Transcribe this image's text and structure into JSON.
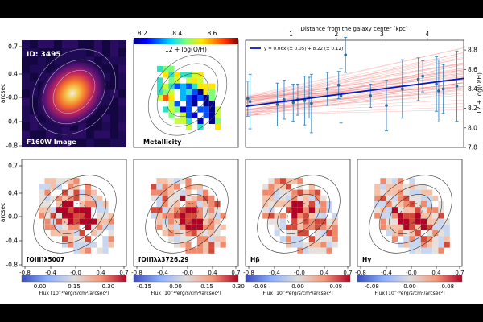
{
  "figure": {
    "id_label": "ID: 3495",
    "arcsec_label": "arcsec",
    "panel_titles": {
      "f160w": "F160W Image",
      "metallicity": "Metallicity",
      "oiii": "[OIII]λ5007",
      "oii": "[OII]λλ3726,29",
      "hbeta": "Hβ",
      "hgamma": "Hγ"
    },
    "y_ticks_top_left": [
      "0.7",
      "0.4",
      "-0.0",
      "-0.4",
      "-0.8"
    ],
    "y_ticks_bottom_left": [
      "0.7",
      "0.4",
      "-0.0",
      "-0.4",
      "-0.8"
    ],
    "x_ticks_bottom": [
      "-0.8",
      "-0.4",
      "-0.0",
      "0.4",
      "0.7"
    ]
  },
  "metallicity_colorbar": {
    "label": "12 + log(O/H)",
    "ticks": [
      "8.2",
      "8.4",
      "8.6"
    ],
    "range": [
      8.15,
      8.75
    ]
  },
  "flux_colorbars": {
    "label": "Flux [10⁻¹⁹erg/s/cm²/arcsec²]",
    "oiii": {
      "ticks": [
        "0.00",
        "0.15",
        "0.30"
      ],
      "range": [
        -0.08,
        0.38
      ]
    },
    "oii": {
      "ticks": [
        "-0.15",
        "0.00",
        "0.15",
        "0.30"
      ],
      "range": [
        -0.2,
        0.3
      ]
    },
    "hbeta": {
      "ticks": [
        "-0.08",
        "0.00",
        "0.08"
      ],
      "range": [
        -0.11,
        0.11
      ]
    },
    "hgamma": {
      "ticks": [
        "-0.08",
        "0.00",
        "0.08"
      ],
      "range": [
        -0.11,
        0.11
      ]
    }
  },
  "chart_data": {
    "type": "scatter",
    "title": "Distance from the galaxy center [kpc]",
    "ylabel": "12 + log(O/H)",
    "xlim": [
      0,
      4.8
    ],
    "ylim": [
      7.8,
      8.9
    ],
    "x_ticks": [
      "1",
      "2",
      "3",
      "4"
    ],
    "y_ticks": [
      "7.8",
      "8.0",
      "8.2",
      "8.4",
      "8.6",
      "8.8"
    ],
    "legend": "y = 0.06x (± 0.05) + 8.22 (± 0.12)",
    "legend_position": "top-left",
    "fit": {
      "slope": 0.06,
      "intercept": 8.22
    },
    "points": [
      {
        "x": 0.05,
        "y": 8.3,
        "err": 0.18
      },
      {
        "x": 0.1,
        "y": 8.27,
        "err": 0.28
      },
      {
        "x": 0.7,
        "y": 8.24,
        "err": 0.22
      },
      {
        "x": 0.85,
        "y": 8.29,
        "err": 0.2
      },
      {
        "x": 1.05,
        "y": 8.26,
        "err": 0.19
      },
      {
        "x": 1.15,
        "y": 8.29,
        "err": 0.16
      },
      {
        "x": 1.3,
        "y": 8.28,
        "err": 0.25
      },
      {
        "x": 1.4,
        "y": 8.31,
        "err": 0.21
      },
      {
        "x": 1.45,
        "y": 8.25,
        "err": 0.3
      },
      {
        "x": 1.8,
        "y": 8.4,
        "err": 0.17
      },
      {
        "x": 2.1,
        "y": 8.33,
        "err": 0.28
      },
      {
        "x": 2.05,
        "y": 8.44,
        "err": 0.14
      },
      {
        "x": 2.2,
        "y": 8.75,
        "err": 0.18
      },
      {
        "x": 2.75,
        "y": 8.33,
        "err": 0.12
      },
      {
        "x": 3.1,
        "y": 8.23,
        "err": 0.26
      },
      {
        "x": 3.45,
        "y": 8.4,
        "err": 0.3
      },
      {
        "x": 3.8,
        "y": 8.5,
        "err": 0.22
      },
      {
        "x": 3.9,
        "y": 8.53,
        "err": 0.16
      },
      {
        "x": 4.2,
        "y": 8.45,
        "err": 0.28
      },
      {
        "x": 4.25,
        "y": 8.38,
        "err": 0.32
      },
      {
        "x": 4.35,
        "y": 8.4,
        "err": 0.25
      },
      {
        "x": 4.65,
        "y": 8.43,
        "err": 0.36
      }
    ]
  }
}
